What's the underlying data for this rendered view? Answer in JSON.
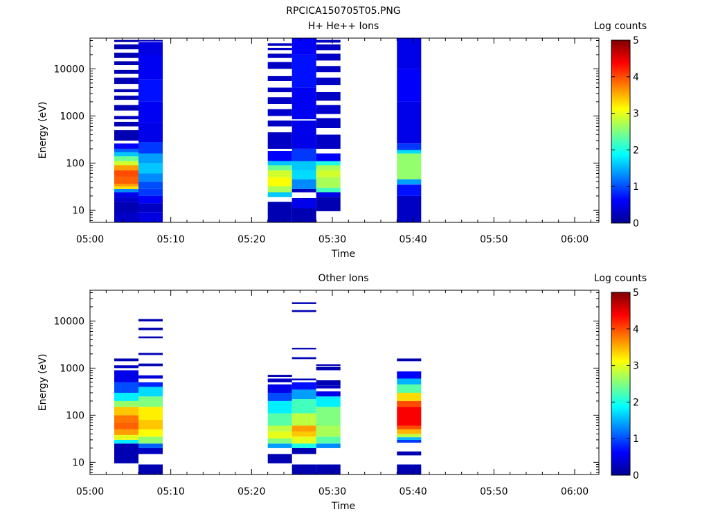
{
  "figure_title": "RPCICA150705T05.PNG",
  "chart_data": [
    {
      "type": "heatmap",
      "title": "H+ He++ Ions",
      "xlabel": "Time",
      "ylabel": "Energy (eV)",
      "x_range": [
        "05:00",
        "06:03"
      ],
      "x_ticks": [
        "05:00",
        "05:10",
        "05:20",
        "05:30",
        "05:40",
        "05:50",
        "06:00"
      ],
      "y_scale": "log",
      "y_range": [
        5.5,
        45000
      ],
      "y_ticks": [
        "10",
        "100",
        "1000",
        "10000"
      ],
      "colorbar": {
        "label": "Log counts",
        "range": [
          0,
          5
        ],
        "ticks": [
          "0",
          "1",
          "2",
          "3",
          "4",
          "5"
        ],
        "colormap": "jet"
      },
      "columns": [
        {
          "t_start": "05:03",
          "t_end": "05:06",
          "cells": [
            [
              5.5,
              9,
              0.3
            ],
            [
              9,
              15,
              0.2
            ],
            [
              15,
              19,
              0.35
            ],
            [
              19,
              24,
              0.5
            ],
            [
              24,
              28,
              1.3
            ],
            [
              28,
              32,
              3.3
            ],
            [
              32,
              36,
              3.6
            ],
            [
              36,
              50,
              3.9
            ],
            [
              50,
              70,
              4.0
            ],
            [
              70,
              90,
              3.6
            ],
            [
              90,
              110,
              2.9
            ],
            [
              110,
              140,
              2.4
            ],
            [
              140,
              170,
              1.6
            ],
            [
              170,
              200,
              1.1
            ],
            [
              200,
              260,
              0.6
            ],
            [
              300,
              500,
              0.2
            ],
            [
              600,
              750,
              0.2
            ],
            [
              850,
              1000,
              0.25
            ],
            [
              1300,
              1700,
              0.2
            ],
            [
              2200,
              2700,
              0.2
            ],
            [
              3200,
              3700,
              0.2
            ],
            [
              4800,
              6500,
              0.2
            ],
            [
              7800,
              9500,
              0.2
            ],
            [
              12000,
              14500,
              0.2
            ],
            [
              17000,
              22000,
              0.2
            ],
            [
              26000,
              33000,
              0.2
            ],
            [
              37000,
              41000,
              0.2
            ]
          ]
        },
        {
          "t_start": "05:06",
          "t_end": "05:09",
          "cells": [
            [
              5.5,
              9,
              0.45
            ],
            [
              9,
              14,
              0.3
            ],
            [
              14,
              20,
              0.6
            ],
            [
              20,
              28,
              0.9
            ],
            [
              28,
              40,
              1.0
            ],
            [
              40,
              60,
              1.3
            ],
            [
              60,
              100,
              1.6
            ],
            [
              100,
              160,
              1.4
            ],
            [
              160,
              280,
              0.9
            ],
            [
              280,
              700,
              0.5
            ],
            [
              700,
              2000,
              0.55
            ],
            [
              2000,
              6000,
              0.7
            ],
            [
              6000,
              20000,
              0.55
            ],
            [
              20000,
              37000,
              0.45
            ],
            [
              38000,
              41000,
              0.3
            ]
          ]
        },
        {
          "t_start": "05:22",
          "t_end": "05:25",
          "cells": [
            [
              5.5,
              15,
              0.2
            ],
            [
              19,
              24,
              1.6
            ],
            [
              24,
              32,
              2.7
            ],
            [
              32,
              50,
              3.1
            ],
            [
              50,
              70,
              2.9
            ],
            [
              70,
              90,
              2.4
            ],
            [
              90,
              110,
              1.6
            ],
            [
              110,
              180,
              0.6
            ],
            [
              200,
              450,
              0.3
            ],
            [
              600,
              800,
              0.3
            ],
            [
              1000,
              1400,
              0.35
            ],
            [
              1800,
              2500,
              0.3
            ],
            [
              3200,
              4000,
              0.3
            ],
            [
              5500,
              7000,
              0.3
            ],
            [
              10000,
              14000,
              0.3
            ],
            [
              17000,
              21000,
              0.3
            ],
            [
              25000,
              28000,
              0.3
            ],
            [
              31000,
              35000,
              0.3
            ]
          ]
        },
        {
          "t_start": "05:25",
          "t_end": "05:28",
          "cells": [
            [
              5.5,
              11,
              0.2
            ],
            [
              11,
              18,
              0.5
            ],
            [
              24,
              28,
              0.3
            ],
            [
              28,
              45,
              1.3
            ],
            [
              45,
              70,
              1.7
            ],
            [
              70,
              110,
              1.6
            ],
            [
              110,
              200,
              0.9
            ],
            [
              200,
              800,
              0.5
            ],
            [
              850,
              4000,
              0.55
            ],
            [
              4000,
              20000,
              0.7
            ],
            [
              20000,
              45000,
              0.6
            ]
          ]
        },
        {
          "t_start": "05:28",
          "t_end": "05:31",
          "cells": [
            [
              9.5,
              19,
              0.2
            ],
            [
              19,
              24,
              0.5
            ],
            [
              24,
              30,
              2.2
            ],
            [
              30,
              50,
              2.7
            ],
            [
              50,
              70,
              2.9
            ],
            [
              70,
              90,
              2.7
            ],
            [
              90,
              110,
              2.0
            ],
            [
              110,
              160,
              0.6
            ],
            [
              200,
              400,
              0.3
            ],
            [
              550,
              900,
              0.3
            ],
            [
              1100,
              1700,
              0.35
            ],
            [
              2100,
              3200,
              0.3
            ],
            [
              4500,
              6500,
              0.3
            ],
            [
              8500,
              11500,
              0.3
            ],
            [
              15000,
              21000,
              0.3
            ],
            [
              25000,
              33000,
              0.3
            ],
            [
              36000,
              41000,
              0.3
            ]
          ]
        },
        {
          "t_start": "05:38",
          "t_end": "05:41",
          "cells": [
            [
              5.5,
              20,
              0.3
            ],
            [
              20,
              35,
              0.7
            ],
            [
              35,
              45,
              1.4
            ],
            [
              45,
              160,
              2.6
            ],
            [
              160,
              190,
              1.7
            ],
            [
              190,
              260,
              0.9
            ],
            [
              260,
              2000,
              0.5
            ],
            [
              2000,
              10000,
              0.6
            ],
            [
              10000,
              45000,
              0.5
            ]
          ]
        }
      ]
    },
    {
      "type": "heatmap",
      "title": "Other Ions",
      "xlabel": "Time",
      "ylabel": "Energy (eV)",
      "x_range": [
        "05:00",
        "06:03"
      ],
      "x_ticks": [
        "05:00",
        "05:10",
        "05:20",
        "05:30",
        "05:40",
        "05:50",
        "06:00"
      ],
      "y_scale": "log",
      "y_range": [
        5.5,
        45000
      ],
      "y_ticks": [
        "10",
        "100",
        "1000",
        "10000"
      ],
      "colorbar": {
        "label": "Log counts",
        "range": [
          0,
          5
        ],
        "ticks": [
          "0",
          "1",
          "2",
          "3",
          "4",
          "5"
        ],
        "colormap": "jet"
      },
      "columns": [
        {
          "t_start": "05:03",
          "t_end": "05:06",
          "cells": [
            [
              9.5,
              25,
              0.2
            ],
            [
              25,
              30,
              1.8
            ],
            [
              30,
              38,
              3.0
            ],
            [
              38,
              50,
              3.6
            ],
            [
              50,
              70,
              3.9
            ],
            [
              70,
              100,
              3.8
            ],
            [
              100,
              150,
              3.4
            ],
            [
              150,
              200,
              2.6
            ],
            [
              200,
              300,
              1.8
            ],
            [
              300,
              500,
              1.0
            ],
            [
              500,
              900,
              0.5
            ],
            [
              1000,
              1150,
              0.3
            ],
            [
              1400,
              1600,
              0.2
            ]
          ]
        },
        {
          "t_start": "05:06",
          "t_end": "05:09",
          "cells": [
            [
              5.5,
              9,
              0.2
            ],
            [
              15,
              20,
              0.3
            ],
            [
              20,
              25,
              1.1
            ],
            [
              25,
              35,
              2.6
            ],
            [
              35,
              50,
              3.1
            ],
            [
              50,
              80,
              3.4
            ],
            [
              80,
              150,
              3.2
            ],
            [
              150,
              250,
              2.5
            ],
            [
              250,
              400,
              1.7
            ],
            [
              400,
              500,
              0.8
            ],
            [
              600,
              700,
              0.4
            ],
            [
              1100,
              1250,
              0.2
            ],
            [
              1900,
              2100,
              0.2
            ],
            [
              4300,
              4700,
              0.2
            ],
            [
              6400,
              7200,
              0.2
            ],
            [
              9800,
              11000,
              0.2
            ]
          ]
        },
        {
          "t_start": "05:22",
          "t_end": "05:25",
          "cells": [
            [
              9.5,
              15,
              0.2
            ],
            [
              20,
              25,
              1.4
            ],
            [
              25,
              32,
              2.5
            ],
            [
              32,
              45,
              3.0
            ],
            [
              45,
              60,
              2.8
            ],
            [
              60,
              110,
              2.3
            ],
            [
              110,
              200,
              1.8
            ],
            [
              200,
              300,
              1.0
            ],
            [
              300,
              450,
              0.5
            ],
            [
              500,
              600,
              0.3
            ],
            [
              650,
              720,
              0.2
            ]
          ]
        },
        {
          "t_start": "05:25",
          "t_end": "05:28",
          "cells": [
            [
              5.5,
              9,
              0.2
            ],
            [
              15,
              20,
              0.2
            ],
            [
              20,
              25,
              2.0
            ],
            [
              25,
              35,
              3.0
            ],
            [
              35,
              45,
              3.4
            ],
            [
              45,
              60,
              3.6
            ],
            [
              60,
              110,
              2.8
            ],
            [
              110,
              220,
              2.2
            ],
            [
              220,
              350,
              1.4
            ],
            [
              350,
              500,
              0.7
            ],
            [
              550,
              600,
              0.2
            ],
            [
              1550,
              1700,
              0.2
            ],
            [
              2500,
              2700,
              0.2
            ],
            [
              15500,
              17000,
              0.2
            ],
            [
              23000,
              25000,
              0.2
            ]
          ]
        },
        {
          "t_start": "05:28",
          "t_end": "05:31",
          "cells": [
            [
              5.5,
              9,
              0.2
            ],
            [
              20,
              25,
              1.3
            ],
            [
              25,
              35,
              2.3
            ],
            [
              35,
              60,
              2.7
            ],
            [
              60,
              150,
              2.5
            ],
            [
              150,
              250,
              1.8
            ],
            [
              250,
              320,
              0.5
            ],
            [
              370,
              430,
              0.3
            ],
            [
              430,
              550,
              0.2
            ],
            [
              900,
              1050,
              0.2
            ],
            [
              1100,
              1200,
              0.2
            ]
          ]
        },
        {
          "t_start": "05:38",
          "t_end": "05:41",
          "cells": [
            [
              5.5,
              9,
              0.2
            ],
            [
              14,
              17,
              0.2
            ],
            [
              26,
              30,
              0.9
            ],
            [
              30,
              34,
              1.5
            ],
            [
              34,
              40,
              2.8
            ],
            [
              40,
              50,
              3.5
            ],
            [
              50,
              60,
              4.0
            ],
            [
              60,
              150,
              4.4
            ],
            [
              150,
              200,
              4.0
            ],
            [
              200,
              300,
              3.3
            ],
            [
              300,
              450,
              2.3
            ],
            [
              450,
              600,
              1.5
            ],
            [
              600,
              850,
              0.6
            ],
            [
              1400,
              1600,
              0.2
            ]
          ]
        }
      ]
    }
  ]
}
